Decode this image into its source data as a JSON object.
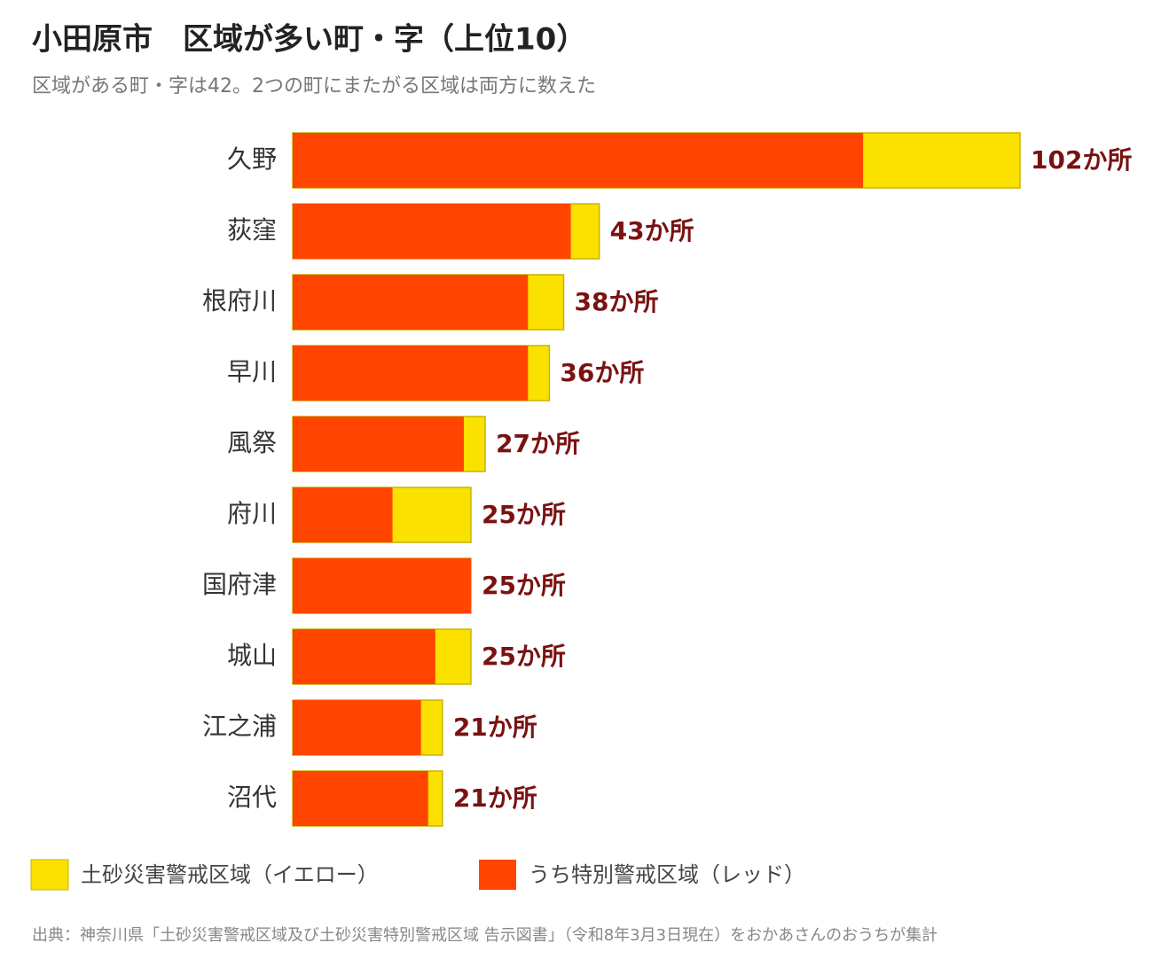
{
  "chart_data": {
    "type": "overlap-bar",
    "title": "小田原市　区域が多い町・字（上位10）",
    "subtitle": "区域がある町・字は42。2つの町にまたがる区域は両方に数えた",
    "categories": [
      "久野",
      "荻窪",
      "根府川",
      "早川",
      "風祭",
      "府川",
      "国府津",
      "城山",
      "江之浦",
      "沼代"
    ],
    "series": [
      {
        "name": "土砂災害警戒区域（イエロー）",
        "color": "#fae100",
        "values": [
          102,
          43,
          38,
          36,
          27,
          25,
          25,
          25,
          21,
          21
        ],
        "value_labels": [
          "102か所",
          "43か所",
          "38か所",
          "36か所",
          "27か所",
          "25か所",
          "25か所",
          "25か所",
          "21か所",
          "21か所"
        ]
      },
      {
        "name": "うち特別警戒区域（レッド）",
        "color": "#ff4500",
        "values": [
          80,
          39,
          33,
          33,
          24,
          14,
          25,
          20,
          18,
          19
        ]
      }
    ],
    "xlim": [
      0,
      102
    ],
    "source": "出典：神奈川県「土砂災害警戒区域及び土砂災害特別警戒区域 告示図書」（令和8年3月3日現在）をおかあさんのおうちが集計"
  }
}
